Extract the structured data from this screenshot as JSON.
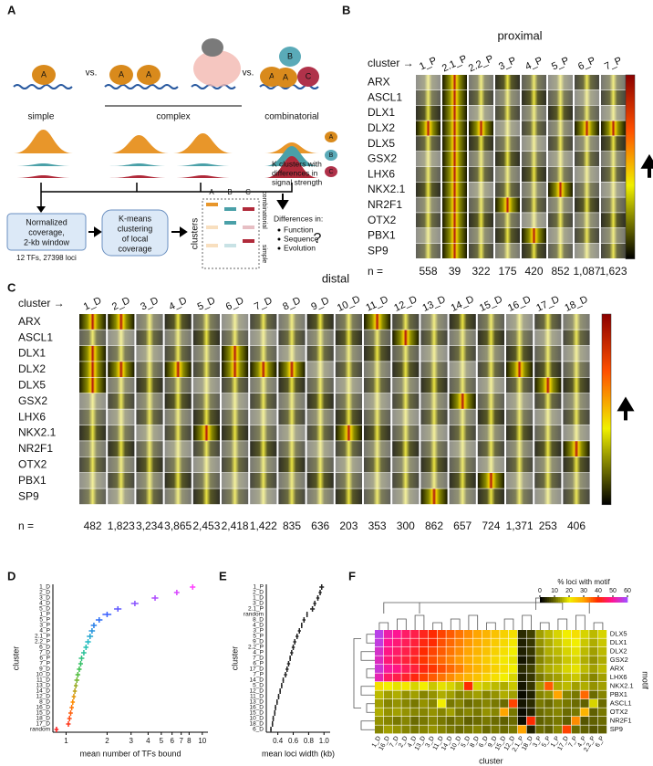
{
  "panel_a": {
    "label": "A",
    "proteins": [
      "A",
      "A",
      "A",
      "A",
      "B",
      "A",
      "C"
    ],
    "vs": [
      "vs.",
      "vs."
    ],
    "categories": [
      "simple",
      "complex",
      "combinatorial"
    ],
    "legend": [
      "A",
      "B",
      "C"
    ],
    "box1": {
      "lines": [
        "Normalized",
        "coverage,",
        "2-kb window"
      ],
      "note": "12 TFs, 27398 loci"
    },
    "box2": [
      "K-means",
      "clustering",
      "of local",
      "coverage"
    ],
    "matrix": {
      "rows_label": "clusters",
      "columns": [
        "A",
        "B",
        "C"
      ],
      "side": [
        "combinatorial",
        "simple"
      ]
    },
    "result": [
      "K clusters with",
      "differences in",
      "signal strength"
    ],
    "differences": {
      "title": "Differences in:",
      "items": [
        "Function",
        "Sequence",
        "Evolution"
      ],
      "mark": "?"
    }
  },
  "panel_b": {
    "label": "B",
    "title": "proximal",
    "cluster_label": "cluster →",
    "columns": [
      "1_P",
      "2.1_P",
      "2.2_P",
      "3_P",
      "4_P",
      "5_P",
      "6_P",
      "7_P"
    ],
    "rows": [
      "ARX",
      "ASCL1",
      "DLX1",
      "DLX2",
      "DLX5",
      "GSX2",
      "LHX6",
      "NKX2.1",
      "NR2F1",
      "OTX2",
      "PBX1",
      "SP9"
    ],
    "n_label": "n =",
    "n": [
      "558",
      "39",
      "322",
      "175",
      "420",
      "852",
      "1,087",
      "1,623"
    ]
  },
  "panel_c": {
    "label": "C",
    "title": "distal",
    "cluster_label": "cluster →",
    "columns": [
      "1_D",
      "2_D",
      "3_D",
      "4_D",
      "5_D",
      "6_D",
      "7_D",
      "8_D",
      "9_D",
      "10_D",
      "11_D",
      "12_D",
      "13_D",
      "14_D",
      "15_D",
      "16_D",
      "17_D",
      "18_D"
    ],
    "rows": [
      "ARX",
      "ASCL1",
      "DLX1",
      "DLX2",
      "DLX5",
      "GSX2",
      "LHX6",
      "NKX2.1",
      "NR2F1",
      "OTX2",
      "PBX1",
      "SP9"
    ],
    "n_label": "n =",
    "n": [
      "482",
      "1,823",
      "3,234",
      "3,865",
      "2,453",
      "2,418",
      "1,422",
      "835",
      "636",
      "203",
      "353",
      "300",
      "862",
      "657",
      "724",
      "1,371",
      "253",
      "406"
    ]
  },
  "chart_data": [
    {
      "type": "scatter",
      "panel": "D",
      "xlabel": "mean number of TFs bound",
      "ylabel": "cluster",
      "categories": [
        "1_D",
        "2_D",
        "3_D",
        "4_D",
        "5_D",
        "1_P",
        "5_P",
        "3_P",
        "4_P",
        "2.1_P",
        "2.2_P",
        "6_D",
        "7_D",
        "6_P",
        "7_P",
        "9_D",
        "10_D",
        "11_D",
        "13_D",
        "14_D",
        "12_D",
        "8_D",
        "16_D",
        "15_D",
        "18_D",
        "17_D",
        "random"
      ],
      "values": [
        8.5,
        6.5,
        4.5,
        3.2,
        2.4,
        2.0,
        1.75,
        1.6,
        1.55,
        1.5,
        1.45,
        1.4,
        1.35,
        1.3,
        1.28,
        1.25,
        1.22,
        1.2,
        1.18,
        1.16,
        1.14,
        1.12,
        1.1,
        1.08,
        1.06,
        1.04,
        0.85
      ],
      "errors": [
        0.4,
        0.3,
        0.25,
        0.2,
        0.15,
        0.15,
        0.1,
        0.08,
        0.08,
        0.08,
        0.07,
        0.06,
        0.06,
        0.06,
        0.05,
        0.05,
        0.05,
        0.05,
        0.04,
        0.04,
        0.04,
        0.04,
        0.04,
        0.04,
        0.04,
        0.04,
        0.03
      ],
      "xlim": [
        0.8,
        11
      ],
      "xticks": [
        1,
        2,
        3,
        4,
        5,
        6,
        7,
        8,
        10
      ],
      "log_x": true,
      "color_scale": [
        "#ff40ff",
        "#3060ff",
        "#20c0c0",
        "#40c040",
        "#ff9000",
        "#ff2020"
      ]
    },
    {
      "type": "scatter",
      "panel": "E",
      "xlabel": "mean loci width (kb)",
      "ylabel": "cluster",
      "categories": [
        "1_P",
        "2_D",
        "1_D",
        "3_D",
        "2.1_P",
        "random",
        "8_D",
        "4_D",
        "3_P",
        "5_P",
        "9_D",
        "2.2_P",
        "4_P",
        "7_D",
        "6_P",
        "17_D",
        "7_P",
        "14_D",
        "5_D",
        "12_D",
        "11_D",
        "13_D",
        "16_D",
        "15_D",
        "10_D",
        "18_D",
        "6_D"
      ],
      "values": [
        0.97,
        0.95,
        0.92,
        0.88,
        0.85,
        0.78,
        0.74,
        0.71,
        0.68,
        0.65,
        0.62,
        0.6,
        0.58,
        0.56,
        0.54,
        0.52,
        0.5,
        0.47,
        0.45,
        0.43,
        0.41,
        0.39,
        0.37,
        0.36,
        0.34,
        0.33,
        0.31
      ],
      "errors": [
        0.03,
        0.02,
        0.02,
        0.02,
        0.03,
        0.01,
        0.02,
        0.01,
        0.02,
        0.02,
        0.02,
        0.02,
        0.02,
        0.01,
        0.02,
        0.02,
        0.02,
        0.01,
        0.01,
        0.01,
        0.01,
        0.01,
        0.01,
        0.01,
        0.01,
        0.01,
        0.01
      ],
      "xlim": [
        0.25,
        1.08
      ],
      "xticks": [
        0.4,
        0.6,
        0.8,
        {
          "value": 1,
          "label": "1.0"
        }
      ],
      "color": "#222222"
    },
    {
      "type": "heatmap",
      "panel": "F",
      "xlabel": "cluster",
      "ylabel": "motif",
      "colorbar_title": "% loci with motif",
      "columns": [
        "1_D",
        "16_D",
        "7_D",
        "2_D",
        "4_D",
        "13_D",
        "3_D",
        "11_D",
        "14_D",
        "10_D",
        "5_D",
        "8_D",
        "6_D",
        "9_D",
        "15_D",
        "12_D",
        "2.1_P",
        "18_D",
        "3_P",
        "5_P",
        "1_P",
        "17_D",
        "7_P",
        "4_P",
        "2.2_P",
        "6_P"
      ],
      "rows": [
        "DLX5",
        "DLX1",
        "DLX2",
        "GSX2",
        "ARX",
        "LHX6",
        "NKX2.1",
        "PBX1",
        "ASCL1",
        "OTX2",
        "NR2F1",
        "SP9"
      ],
      "values": [
        [
          58,
          52,
          50,
          47,
          45,
          42,
          40,
          38,
          36,
          34,
          32,
          30,
          28,
          26,
          24,
          22,
          4,
          6,
          14,
          16,
          18,
          20,
          22,
          18,
          16,
          18
        ],
        [
          57,
          50,
          48,
          46,
          44,
          41,
          40,
          37,
          35,
          33,
          31,
          29,
          27,
          25,
          23,
          21,
          3,
          5,
          13,
          15,
          17,
          19,
          20,
          17,
          15,
          17
        ],
        [
          55,
          49,
          47,
          45,
          43,
          40,
          38,
          36,
          34,
          32,
          30,
          28,
          26,
          24,
          22,
          20,
          3,
          5,
          12,
          15,
          16,
          18,
          19,
          16,
          14,
          16
        ],
        [
          54,
          48,
          46,
          44,
          42,
          39,
          37,
          35,
          33,
          31,
          29,
          27,
          25,
          23,
          21,
          19,
          2,
          4,
          12,
          14,
          15,
          17,
          18,
          15,
          13,
          15
        ],
        [
          56,
          51,
          49,
          46,
          44,
          41,
          39,
          37,
          35,
          33,
          30,
          28,
          26,
          24,
          22,
          20,
          4,
          6,
          13,
          15,
          16,
          18,
          19,
          16,
          14,
          16
        ],
        [
          53,
          47,
          45,
          43,
          41,
          38,
          36,
          34,
          32,
          30,
          28,
          26,
          24,
          22,
          20,
          18,
          3,
          5,
          11,
          13,
          14,
          16,
          17,
          14,
          12,
          14
        ],
        [
          22,
          20,
          19,
          21,
          18,
          20,
          17,
          19,
          18,
          16,
          40,
          18,
          17,
          16,
          15,
          17,
          2,
          5,
          14,
          36,
          15,
          16,
          14,
          15,
          13,
          14
        ],
        [
          16,
          14,
          15,
          13,
          14,
          12,
          13,
          15,
          14,
          12,
          13,
          14,
          12,
          13,
          15,
          14,
          1,
          3,
          12,
          13,
          30,
          12,
          11,
          35,
          10,
          12
        ],
        [
          14,
          12,
          13,
          12,
          11,
          13,
          12,
          20,
          11,
          12,
          10,
          11,
          12,
          11,
          10,
          38,
          2,
          4,
          11,
          10,
          12,
          11,
          10,
          9,
          18,
          10
        ],
        [
          15,
          13,
          14,
          13,
          12,
          12,
          13,
          12,
          14,
          11,
          12,
          11,
          13,
          12,
          30,
          11,
          1,
          3,
          10,
          11,
          12,
          10,
          11,
          28,
          9,
          11
        ],
        [
          13,
          12,
          11,
          12,
          10,
          11,
          12,
          11,
          10,
          11,
          9,
          10,
          11,
          10,
          9,
          10,
          1,
          40,
          9,
          10,
          11,
          9,
          32,
          8,
          9,
          10
        ],
        [
          12,
          14,
          13,
          12,
          11,
          12,
          13,
          12,
          11,
          10,
          11,
          12,
          10,
          11,
          10,
          11,
          30,
          3,
          10,
          9,
          12,
          38,
          10,
          9,
          8,
          9
        ]
      ],
      "clim": [
        0,
        60
      ],
      "cticks": [
        0,
        10,
        20,
        30,
        40,
        50,
        60
      ],
      "color_scale": [
        "#000000",
        "#6b6b00",
        "#f2ee00",
        "#ffa500",
        "#ff2a00",
        "#ff1493",
        "#a64dff"
      ]
    }
  ]
}
